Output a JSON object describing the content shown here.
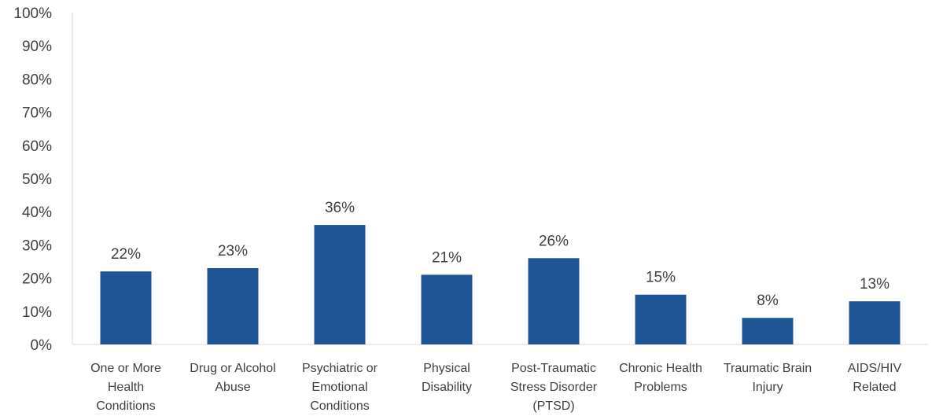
{
  "chart_data": {
    "type": "bar",
    "categories": [
      [
        "One or More",
        "Health",
        "Conditions"
      ],
      [
        "Drug or Alcohol",
        "Abuse"
      ],
      [
        "Psychiatric or",
        "Emotional",
        "Conditions"
      ],
      [
        "Physical",
        "Disability"
      ],
      [
        "Post-Traumatic",
        "Stress Disorder",
        "(PTSD)"
      ],
      [
        "Chronic Health",
        "Problems"
      ],
      [
        "Traumatic Brain",
        "Injury"
      ],
      [
        "AIDS/HIV",
        "Related"
      ]
    ],
    "values": [
      22,
      23,
      36,
      21,
      26,
      15,
      8,
      13
    ],
    "data_labels": [
      "22%",
      "23%",
      "36%",
      "21%",
      "26%",
      "15%",
      "8%",
      "13%"
    ],
    "yticks": [
      "0%",
      "10%",
      "20%",
      "30%",
      "40%",
      "50%",
      "60%",
      "70%",
      "80%",
      "90%",
      "100%"
    ],
    "ylim": [
      0,
      100
    ],
    "grid": false,
    "bar_color": "#1f5597",
    "title": "",
    "xlabel": "",
    "ylabel": ""
  }
}
